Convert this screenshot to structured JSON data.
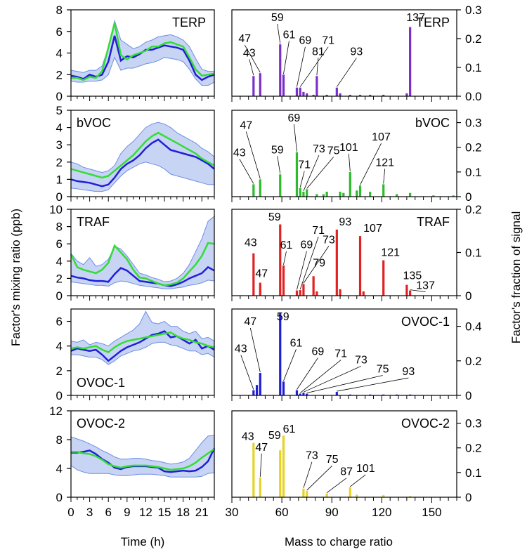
{
  "figure": {
    "left_ylabel": "Factor's mixing ratio (ppb)",
    "right_ylabel": "Factor's fraction of signal",
    "left_xlabel": "Time (h)",
    "right_xlabel": "Mass to charge ratio",
    "left_xticks": [
      "0",
      "3",
      "6",
      "9",
      "12",
      "15",
      "18",
      "21"
    ],
    "right_xticks": [
      "30",
      "60",
      "90",
      "120",
      "150"
    ]
  },
  "colors": {
    "median_line": "#1f1fd6",
    "mean_line": "#33dd33",
    "band_fill": "#c8d4f4",
    "band_edge": "#6d8ee6"
  },
  "chart_data": [
    {
      "type": "line",
      "name": "TERP",
      "label": "TERP",
      "label_pos": "top-right",
      "xlim": [
        0,
        23
      ],
      "ylim": [
        0,
        8
      ],
      "yticks": [
        "0",
        "2",
        "4",
        "6",
        "8"
      ],
      "x": [
        0,
        1,
        2,
        3,
        4,
        5,
        6,
        7,
        8,
        9,
        10,
        11,
        12,
        13,
        14,
        15,
        16,
        17,
        18,
        19,
        20,
        21,
        22,
        23
      ],
      "blue": [
        1.9,
        1.8,
        1.6,
        2.0,
        1.8,
        2.0,
        3.2,
        5.6,
        3.3,
        3.7,
        3.6,
        3.9,
        4.3,
        4.3,
        4.5,
        4.7,
        4.6,
        4.5,
        4.3,
        3.3,
        2.0,
        1.5,
        1.8,
        2.0
      ],
      "green": [
        1.7,
        1.7,
        1.5,
        1.8,
        1.7,
        2.3,
        4.5,
        6.8,
        3.8,
        3.4,
        3.8,
        4.0,
        4.2,
        4.6,
        4.6,
        4.9,
        5.0,
        4.8,
        4.6,
        3.6,
        2.5,
        1.9,
        2.0,
        2.1
      ],
      "upper": [
        2.4,
        2.3,
        2.2,
        2.4,
        2.4,
        2.8,
        4.5,
        7.0,
        5.2,
        4.8,
        4.4,
        4.6,
        5.0,
        5.2,
        5.5,
        5.6,
        5.7,
        5.5,
        5.2,
        4.6,
        3.5,
        2.5,
        2.3,
        2.3
      ],
      "lower": [
        1.4,
        1.3,
        1.3,
        1.4,
        1.4,
        1.5,
        2.0,
        3.6,
        2.4,
        2.6,
        2.6,
        2.8,
        3.0,
        3.1,
        3.3,
        3.6,
        3.5,
        3.4,
        3.2,
        2.5,
        1.6,
        1.0,
        1.0,
        1.3
      ]
    },
    {
      "type": "line",
      "name": "bVOC",
      "label": "bVOC",
      "label_pos": "top-left",
      "xlim": [
        0,
        23
      ],
      "ylim": [
        0,
        5
      ],
      "yticks": [
        "0",
        "1",
        "2",
        "3",
        "4",
        "5"
      ],
      "x": [
        0,
        1,
        2,
        3,
        4,
        5,
        6,
        7,
        8,
        9,
        10,
        11,
        12,
        13,
        14,
        15,
        16,
        17,
        18,
        19,
        20,
        21,
        22,
        23
      ],
      "blue": [
        1.0,
        0.9,
        0.85,
        0.8,
        0.7,
        0.6,
        0.7,
        1.1,
        1.6,
        1.9,
        2.1,
        2.4,
        2.8,
        3.1,
        3.3,
        3.0,
        2.7,
        2.6,
        2.5,
        2.4,
        2.3,
        2.1,
        1.9,
        1.6
      ],
      "green": [
        1.6,
        1.5,
        1.4,
        1.3,
        1.2,
        1.1,
        1.2,
        1.5,
        1.8,
        2.1,
        2.4,
        2.8,
        3.2,
        3.5,
        3.7,
        3.5,
        3.3,
        3.1,
        2.9,
        2.7,
        2.5,
        2.2,
        2.0,
        1.8
      ],
      "upper": [
        2.0,
        1.9,
        1.7,
        1.6,
        1.5,
        1.4,
        1.5,
        1.8,
        2.5,
        2.9,
        3.2,
        3.6,
        4.0,
        4.2,
        4.3,
        4.2,
        4.0,
        3.7,
        3.5,
        3.3,
        3.1,
        2.8,
        2.6,
        2.3
      ],
      "lower": [
        0.5,
        0.45,
        0.4,
        0.35,
        0.3,
        0.3,
        0.4,
        0.8,
        1.2,
        1.5,
        1.7,
        1.9,
        2.0,
        1.9,
        1.8,
        1.6,
        1.3,
        1.2,
        1.1,
        1.0,
        0.9,
        0.8,
        0.7,
        0.7
      ]
    },
    {
      "type": "line",
      "name": "TRAF",
      "label": "TRAF",
      "label_pos": "top-left",
      "xlim": [
        0,
        23
      ],
      "ylim": [
        0,
        10
      ],
      "yticks": [
        "0",
        "2",
        "4",
        "6",
        "8",
        "10"
      ],
      "x": [
        0,
        1,
        2,
        3,
        4,
        5,
        6,
        7,
        8,
        9,
        10,
        11,
        12,
        13,
        14,
        15,
        16,
        17,
        18,
        19,
        20,
        21,
        22,
        23
      ],
      "blue": [
        2.3,
        2.1,
        2.0,
        1.8,
        1.7,
        1.7,
        1.6,
        2.5,
        3.2,
        2.9,
        2.3,
        1.7,
        1.6,
        1.5,
        1.4,
        1.2,
        1.1,
        1.3,
        1.6,
        2.0,
        2.3,
        2.6,
        3.3,
        2.9
      ],
      "green": [
        4.8,
        3.3,
        3.0,
        2.8,
        2.6,
        3.0,
        3.8,
        5.8,
        5.0,
        4.2,
        3.0,
        2.1,
        2.0,
        1.7,
        1.4,
        1.2,
        1.3,
        1.5,
        2.0,
        2.8,
        3.6,
        4.6,
        6.1,
        6.0
      ],
      "upper": [
        4.9,
        4.0,
        3.6,
        4.4,
        3.4,
        3.6,
        4.2,
        5.7,
        5.4,
        4.6,
        3.6,
        2.6,
        2.4,
        2.1,
        1.9,
        1.6,
        1.7,
        2.0,
        2.6,
        3.6,
        5.1,
        6.6,
        8.6,
        9.2
      ],
      "lower": [
        1.6,
        1.5,
        1.4,
        1.3,
        1.2,
        1.2,
        1.1,
        1.5,
        1.7,
        1.6,
        1.4,
        1.2,
        1.1,
        1.0,
        0.9,
        0.8,
        0.8,
        0.9,
        1.0,
        1.2,
        1.3,
        1.5,
        1.8,
        1.7
      ]
    },
    {
      "type": "line",
      "name": "OVOC-1",
      "label": "OVOC-1",
      "label_pos": "bottom-left",
      "xlim": [
        0,
        23
      ],
      "ylim": [
        0,
        7
      ],
      "yticks": [
        "0",
        "2",
        "4",
        "6"
      ],
      "x": [
        0,
        1,
        2,
        3,
        4,
        5,
        6,
        7,
        8,
        9,
        10,
        11,
        12,
        13,
        14,
        15,
        16,
        17,
        18,
        19,
        20,
        21,
        22,
        23
      ],
      "blue": [
        3.6,
        3.8,
        3.7,
        3.6,
        3.7,
        3.3,
        2.8,
        3.2,
        3.6,
        3.9,
        4.1,
        4.3,
        4.6,
        4.9,
        5.0,
        5.2,
        4.7,
        4.8,
        4.5,
        4.2,
        4.5,
        3.8,
        4.0,
        3.7
      ],
      "green": [
        3.8,
        3.9,
        3.8,
        3.9,
        4.0,
        3.7,
        3.5,
        3.9,
        4.2,
        4.4,
        4.5,
        4.6,
        4.7,
        4.8,
        4.9,
        5.0,
        5.1,
        4.8,
        4.6,
        4.5,
        4.3,
        4.2,
        4.0,
        3.9
      ],
      "upper": [
        4.4,
        4.3,
        4.5,
        4.1,
        4.3,
        4.2,
        4.0,
        4.4,
        4.7,
        5.0,
        5.3,
        5.8,
        6.8,
        5.9,
        5.8,
        6.0,
        5.6,
        5.6,
        5.2,
        5.0,
        5.2,
        4.6,
        4.7,
        4.4
      ],
      "lower": [
        3.3,
        3.3,
        3.2,
        3.1,
        3.1,
        2.9,
        2.5,
        2.8,
        3.2,
        3.4,
        3.6,
        3.7,
        3.9,
        4.2,
        4.3,
        4.3,
        4.1,
        4.0,
        3.8,
        3.6,
        3.6,
        3.3,
        3.4,
        3.1
      ]
    },
    {
      "type": "line",
      "name": "OVOC-2",
      "label": "OVOC-2",
      "label_pos": "top-left",
      "xlim": [
        0,
        23
      ],
      "ylim": [
        0,
        12
      ],
      "yticks": [
        "0",
        "4",
        "8",
        "12"
      ],
      "x": [
        0,
        1,
        2,
        3,
        4,
        5,
        6,
        7,
        8,
        9,
        10,
        11,
        12,
        13,
        14,
        15,
        16,
        17,
        18,
        19,
        20,
        21,
        22,
        23
      ],
      "blue": [
        6.2,
        6.2,
        6.3,
        6.5,
        6.0,
        5.3,
        4.8,
        4.1,
        3.9,
        4.2,
        4.3,
        4.3,
        4.3,
        4.2,
        4.1,
        3.6,
        3.5,
        3.6,
        3.7,
        3.6,
        3.7,
        4.2,
        5.0,
        6.8
      ],
      "green": [
        6.3,
        6.3,
        6.1,
        6.0,
        5.7,
        5.2,
        4.6,
        4.3,
        4.1,
        4.3,
        4.4,
        4.4,
        4.4,
        4.3,
        4.2,
        4.0,
        3.8,
        3.9,
        4.0,
        4.3,
        4.8,
        5.5,
        6.1,
        6.7
      ],
      "upper": [
        8.4,
        8.1,
        7.8,
        7.4,
        7.0,
        6.5,
        6.1,
        5.6,
        5.3,
        5.3,
        5.4,
        5.4,
        5.3,
        5.1,
        5.0,
        4.8,
        4.6,
        4.7,
        4.9,
        5.4,
        6.5,
        7.6,
        8.5,
        8.6
      ],
      "lower": [
        4.4,
        3.8,
        3.5,
        3.3,
        3.3,
        3.3,
        3.3,
        3.1,
        3.0,
        3.0,
        3.1,
        3.2,
        3.2,
        3.2,
        3.1,
        3.0,
        2.8,
        2.8,
        2.8,
        2.8,
        2.8,
        2.9,
        3.3,
        3.4
      ]
    },
    {
      "type": "bar",
      "name": "TERP",
      "label": "TERP",
      "color": "#7b2fc9",
      "xlim": [
        30,
        165
      ],
      "ylim": [
        0,
        0.3
      ],
      "yticks": [
        "0.0",
        "0.1",
        "0.2",
        "0.3"
      ],
      "x": [
        43,
        47,
        59,
        61,
        69,
        71,
        73,
        75,
        79,
        81,
        87,
        93,
        95,
        101,
        107,
        113,
        121,
        135,
        137
      ],
      "values": [
        0.07,
        0.08,
        0.18,
        0.075,
        0.03,
        0.03,
        0.015,
        0.01,
        0.005,
        0.07,
        0.005,
        0.03,
        0.01,
        0.005,
        0.005,
        0.005,
        0.005,
        0.01,
        0.24
      ],
      "annotations": [
        {
          "mz": 43,
          "text": "43"
        },
        {
          "mz": 47,
          "text": "47"
        },
        {
          "mz": 59,
          "text": "59"
        },
        {
          "mz": 61,
          "text": "61"
        },
        {
          "mz": 69,
          "text": "69"
        },
        {
          "mz": 71,
          "text": "71"
        },
        {
          "mz": 81,
          "text": "81"
        },
        {
          "mz": 93,
          "text": "93"
        },
        {
          "mz": 137,
          "text": "137"
        }
      ]
    },
    {
      "type": "bar",
      "name": "bVOC",
      "label": "bVOC",
      "color": "#2bbb2b",
      "xlim": [
        30,
        165
      ],
      "ylim": [
        0,
        0.35
      ],
      "yticks": [
        "0",
        "0.1",
        "0.2",
        "0.3"
      ],
      "x": [
        43,
        47,
        59,
        69,
        71,
        73,
        75,
        81,
        85,
        87,
        95,
        97,
        101,
        105,
        107,
        113,
        121,
        129,
        137,
        151,
        163
      ],
      "values": [
        0.05,
        0.07,
        0.09,
        0.18,
        0.035,
        0.02,
        0.03,
        0.01,
        0.01,
        0.02,
        0.02,
        0.015,
        0.1,
        0.025,
        0.045,
        0.02,
        0.05,
        0.01,
        0.015,
        0.005,
        0.005
      ],
      "annotations": [
        {
          "mz": 43,
          "text": "43"
        },
        {
          "mz": 47,
          "text": "47"
        },
        {
          "mz": 59,
          "text": "59"
        },
        {
          "mz": 69,
          "text": "69"
        },
        {
          "mz": 71,
          "text": "71"
        },
        {
          "mz": 73,
          "text": "73"
        },
        {
          "mz": 75,
          "text": "75"
        },
        {
          "mz": 101,
          "text": "101"
        },
        {
          "mz": 107,
          "text": "107"
        },
        {
          "mz": 121,
          "text": "121"
        }
      ]
    },
    {
      "type": "bar",
      "name": "TRAF",
      "label": "TRAF",
      "color": "#e02222",
      "xlim": [
        30,
        165
      ],
      "ylim": [
        0,
        0.2
      ],
      "yticks": [
        "0",
        "0.1",
        "0.2"
      ],
      "x": [
        43,
        47,
        59,
        61,
        69,
        71,
        73,
        79,
        81,
        93,
        95,
        107,
        109,
        121,
        135,
        137
      ],
      "values": [
        0.098,
        0.03,
        0.165,
        0.07,
        0.012,
        0.013,
        0.027,
        0.045,
        0.01,
        0.153,
        0.015,
        0.138,
        0.01,
        0.082,
        0.025,
        0.012
      ],
      "annotations": [
        {
          "mz": 43,
          "text": "43"
        },
        {
          "mz": 47,
          "text": "47"
        },
        {
          "mz": 59,
          "text": "59"
        },
        {
          "mz": 61,
          "text": "61"
        },
        {
          "mz": 69,
          "text": "69"
        },
        {
          "mz": 71,
          "text": "71"
        },
        {
          "mz": 73,
          "text": "73"
        },
        {
          "mz": 79,
          "text": "79"
        },
        {
          "mz": 93,
          "text": "93"
        },
        {
          "mz": 107,
          "text": "107"
        },
        {
          "mz": 121,
          "text": "121"
        },
        {
          "mz": 135,
          "text": "135"
        },
        {
          "mz": 137,
          "text": "137"
        }
      ]
    },
    {
      "type": "bar",
      "name": "OVOC-1",
      "label": "OVOC-1",
      "color": "#1f1fd6",
      "xlim": [
        30,
        165
      ],
      "ylim": [
        0,
        0.5
      ],
      "yticks": [
        "0",
        "0.2",
        "0.4"
      ],
      "x": [
        43,
        45,
        47,
        59,
        61,
        69,
        71,
        73,
        75,
        93,
        101,
        113,
        121,
        129,
        137
      ],
      "values": [
        0.03,
        0.06,
        0.13,
        0.48,
        0.08,
        0.03,
        0.01,
        0.015,
        0.01,
        0.02,
        0.005,
        0.005,
        0.005,
        0.005,
        0.005
      ],
      "annotations": [
        {
          "mz": 43,
          "text": "43"
        },
        {
          "mz": 47,
          "text": "47"
        },
        {
          "mz": 59,
          "text": "59"
        },
        {
          "mz": 61,
          "text": "61"
        },
        {
          "mz": 69,
          "text": "69"
        },
        {
          "mz": 71,
          "text": "71"
        },
        {
          "mz": 73,
          "text": "73"
        },
        {
          "mz": 75,
          "text": "75"
        },
        {
          "mz": 93,
          "text": "93"
        }
      ]
    },
    {
      "type": "bar",
      "name": "OVOC-2",
      "label": "OVOC-2",
      "color": "#e8d226",
      "xlim": [
        30,
        165
      ],
      "ylim": [
        0,
        0.35
      ],
      "yticks": [
        "0",
        "0.1",
        "0.2",
        "0.3"
      ],
      "x": [
        43,
        47,
        59,
        61,
        73,
        75,
        87,
        101,
        105,
        121,
        137
      ],
      "values": [
        0.22,
        0.08,
        0.19,
        0.25,
        0.035,
        0.025,
        0.015,
        0.04,
        0.01,
        0.008,
        0.005
      ],
      "annotations": [
        {
          "mz": 43,
          "text": "43"
        },
        {
          "mz": 47,
          "text": "47"
        },
        {
          "mz": 59,
          "text": "59"
        },
        {
          "mz": 61,
          "text": "61"
        },
        {
          "mz": 73,
          "text": "73"
        },
        {
          "mz": 75,
          "text": "75"
        },
        {
          "mz": 87,
          "text": "87"
        },
        {
          "mz": 101,
          "text": "101"
        }
      ]
    }
  ]
}
